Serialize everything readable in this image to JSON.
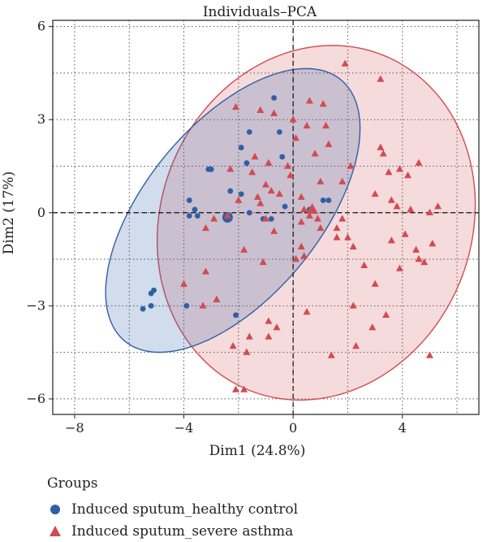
{
  "chart_data": {
    "type": "scatter",
    "title": "Individuals–PCA",
    "xlabel": "Dim1 (24.8%)",
    "ylabel": "Dim2 (17%)",
    "xlim": [
      -8.8,
      6.8
    ],
    "ylim": [
      -6.5,
      6.2
    ],
    "xticks": [
      -8,
      -4,
      0,
      4
    ],
    "yticks": [
      -6,
      -3,
      0,
      3,
      6
    ],
    "grid": true,
    "legend_position": "bottom-left",
    "legend_title": "Groups",
    "colors": {
      "healthy": "#2f5fa7",
      "asthma": "#d24b52"
    },
    "series": [
      {
        "name": "Induced sputum_healthy control",
        "marker": "circle",
        "color": "#2f5fa7",
        "x": [
          -0.7,
          -1.6,
          -0.5,
          -1.9,
          -1.7,
          -0.4,
          -3.0,
          -3.1,
          -2.3,
          -1.9,
          -3.8,
          -3.6,
          -3.8,
          -3.5,
          -1.6,
          -1.1,
          -0.8,
          -0.3,
          0.6,
          1.1,
          1.3,
          -5.2,
          -5.1,
          -5.5,
          -5.2,
          -3.9,
          -2.1
        ],
        "y": [
          3.7,
          2.6,
          2.6,
          2.1,
          1.6,
          1.8,
          1.4,
          1.4,
          0.7,
          0.6,
          0.4,
          0.1,
          -0.1,
          -0.1,
          0.0,
          -0.2,
          -0.2,
          0.2,
          0.1,
          0.4,
          0.4,
          -2.6,
          -2.5,
          -3.1,
          -3.0,
          -3.0,
          -3.3
        ],
        "centroid": [
          -2.4,
          -0.15
        ]
      },
      {
        "name": "Induced sputum_severe asthma",
        "marker": "triangle",
        "color": "#d24b52",
        "x": [
          1.9,
          3.2,
          0.6,
          1.1,
          -2.1,
          -1.2,
          -0.7,
          0.0,
          0.5,
          1.2,
          3.2,
          0.1,
          1.3,
          0.8,
          -1.4,
          -0.9,
          -2.3,
          -1.5,
          -0.2,
          -0.1,
          1.0,
          1.8,
          2.1,
          -1.0,
          -0.8,
          -1.3,
          -0.5,
          0.3,
          -2.0,
          -1.2,
          3.3,
          3.5,
          3.9,
          4.2,
          4.6,
          3.0,
          3.6,
          3.8,
          4.3,
          5.0,
          5.3,
          0.4,
          0.7,
          0.6,
          0.9,
          1.8,
          1.6,
          2.0,
          3.6,
          4.1,
          4.6,
          0.3,
          1.0,
          1.6,
          2.2,
          -2.9,
          -2.4,
          -3.2,
          -1.0,
          -0.7,
          -1.8,
          0.4,
          -1.1,
          2.6,
          3.9,
          4.5,
          3.0,
          4.8,
          5.1,
          3.4,
          2.9,
          2.3,
          1.4,
          -2.8,
          -3.3,
          -0.9,
          -0.6,
          -1.6,
          5.0,
          -1.7,
          -2.2,
          -4.0,
          -3.2,
          0.5,
          2.2,
          -0.9,
          -2.1,
          -1.8,
          0.1,
          0.3
        ],
        "y": [
          4.8,
          4.3,
          3.6,
          3.5,
          3.4,
          3.3,
          3.2,
          3.0,
          2.8,
          2.8,
          2.1,
          2.4,
          2.2,
          1.9,
          1.8,
          1.6,
          1.4,
          1.3,
          1.5,
          1.2,
          1.0,
          1.0,
          1.5,
          0.9,
          0.7,
          0.5,
          0.6,
          0.5,
          0.4,
          0.3,
          1.9,
          1.3,
          1.4,
          1.2,
          1.6,
          0.6,
          0.4,
          0.2,
          0.1,
          0.0,
          0.2,
          0.1,
          0.1,
          -0.1,
          -0.2,
          -0.2,
          -0.5,
          -0.8,
          -0.9,
          -0.7,
          -1.5,
          -0.3,
          -0.5,
          -0.8,
          -1.1,
          -0.2,
          -0.1,
          -0.5,
          -0.2,
          -0.6,
          -1.2,
          -1.4,
          -1.6,
          -1.7,
          -1.8,
          -1.2,
          -2.3,
          -1.6,
          -1.0,
          -3.3,
          -3.7,
          -4.3,
          -4.6,
          -2.8,
          -3.0,
          -3.5,
          -3.7,
          -4.0,
          -4.6,
          -4.5,
          -4.3,
          -2.3,
          -1.9,
          -3.2,
          -3.0,
          -4.0,
          -5.7,
          -5.7,
          -1.5,
          -1.1
        ],
        "centroid": [
          0.7,
          0.1
        ]
      }
    ]
  }
}
